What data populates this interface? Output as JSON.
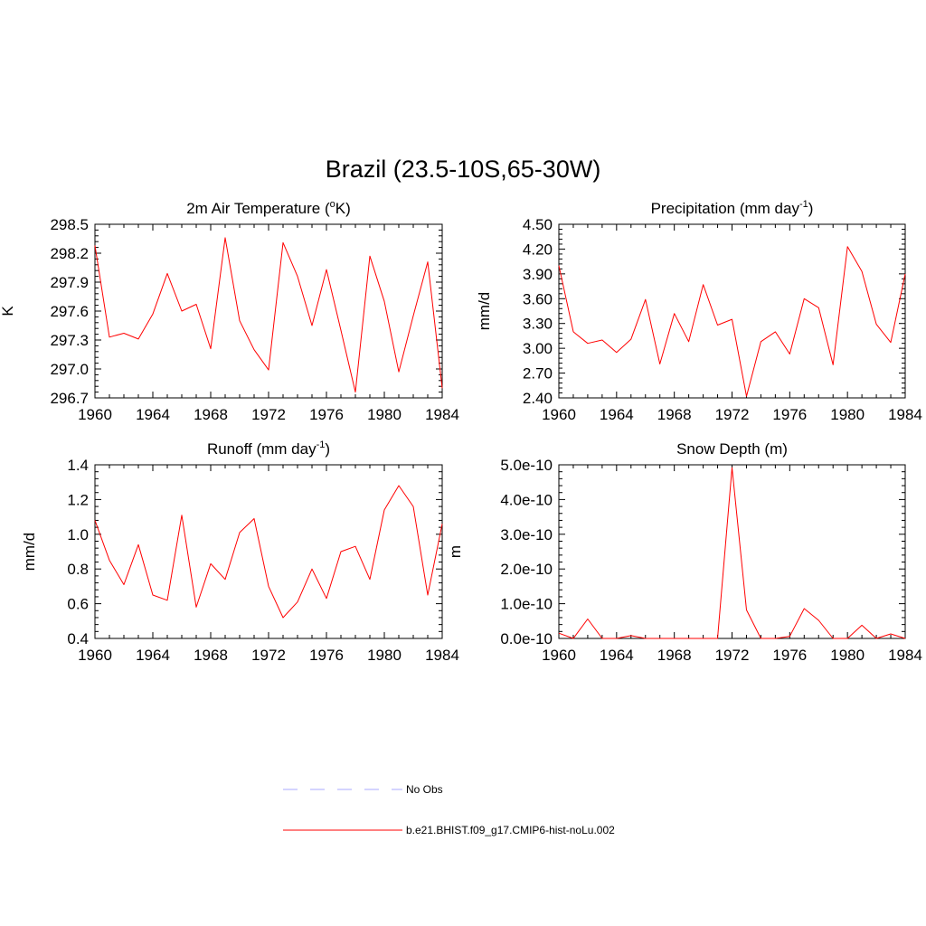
{
  "title": "Brazil (23.5-10S,65-30W)",
  "chart_data": [
    {
      "type": "line",
      "title": "2m Air Temperature (",
      "title_sup": "o",
      "title_suffix": "K)",
      "ylabel": "K",
      "xlim": [
        1960,
        1984
      ],
      "ylim": [
        296.7,
        298.5
      ],
      "xticks": [
        1960,
        1964,
        1968,
        1972,
        1976,
        1980,
        1984
      ],
      "yticks": [
        "296.7",
        "297.0",
        "297.3",
        "297.6",
        "297.9",
        "298.2",
        "298.5"
      ],
      "x": [
        1960,
        1961,
        1962,
        1963,
        1964,
        1965,
        1966,
        1967,
        1968,
        1969,
        1970,
        1971,
        1972,
        1973,
        1974,
        1975,
        1976,
        1977,
        1978,
        1979,
        1980,
        1981,
        1982,
        1983,
        1984
      ],
      "series": [
        {
          "values": [
            298.28,
            297.33,
            297.37,
            297.31,
            297.57,
            297.99,
            297.6,
            297.67,
            297.21,
            298.36,
            297.5,
            297.2,
            296.99,
            298.31,
            297.96,
            297.45,
            298.03,
            297.4,
            296.76,
            298.17,
            297.7,
            296.97,
            297.55,
            298.11,
            296.8
          ]
        }
      ]
    },
    {
      "type": "line",
      "title": "Precipitation (mm day",
      "title_sup": "-1",
      "title_suffix": ")",
      "ylabel": "mm/d",
      "xlim": [
        1960,
        1984
      ],
      "ylim": [
        2.4,
        4.5
      ],
      "xticks": [
        1960,
        1964,
        1968,
        1972,
        1976,
        1980,
        1984
      ],
      "yticks": [
        "2.40",
        "2.70",
        "3.00",
        "3.30",
        "3.60",
        "3.90",
        "4.20",
        "4.50"
      ],
      "x": [
        1960,
        1961,
        1962,
        1963,
        1964,
        1965,
        1966,
        1967,
        1968,
        1969,
        1970,
        1971,
        1972,
        1973,
        1974,
        1975,
        1976,
        1977,
        1978,
        1979,
        1980,
        1981,
        1982,
        1983,
        1984
      ],
      "series": [
        {
          "values": [
            4.0,
            3.2,
            3.06,
            3.1,
            2.95,
            3.11,
            3.59,
            2.81,
            3.42,
            3.08,
            3.77,
            3.28,
            3.35,
            2.42,
            3.08,
            3.2,
            2.93,
            3.6,
            3.49,
            2.8,
            4.23,
            3.93,
            3.29,
            3.07,
            3.9
          ]
        }
      ]
    },
    {
      "type": "line",
      "title": "Runoff (mm day",
      "title_sup": "-1",
      "title_suffix": ")",
      "ylabel": "mm/d",
      "xlim": [
        1960,
        1984
      ],
      "ylim": [
        0.4,
        1.4
      ],
      "xticks": [
        1960,
        1964,
        1968,
        1972,
        1976,
        1980,
        1984
      ],
      "yticks": [
        "0.4",
        "0.6",
        "0.8",
        "1.0",
        "1.2",
        "1.4"
      ],
      "x": [
        1960,
        1961,
        1962,
        1963,
        1964,
        1965,
        1966,
        1967,
        1968,
        1969,
        1970,
        1971,
        1972,
        1973,
        1974,
        1975,
        1976,
        1977,
        1978,
        1979,
        1980,
        1981,
        1982,
        1983,
        1984
      ],
      "series": [
        {
          "values": [
            1.08,
            0.85,
            0.71,
            0.94,
            0.65,
            0.62,
            1.11,
            0.58,
            0.83,
            0.74,
            1.01,
            1.09,
            0.7,
            0.52,
            0.61,
            0.8,
            0.63,
            0.9,
            0.93,
            0.74,
            1.14,
            1.28,
            1.16,
            0.65,
            1.06
          ]
        }
      ]
    },
    {
      "type": "line",
      "title": "Snow Depth (m)",
      "title_sup": "",
      "title_suffix": "",
      "ylabel": "m",
      "xlim": [
        1960,
        1984
      ],
      "ylim": [
        0,
        5e-10
      ],
      "xticks": [
        1960,
        1964,
        1968,
        1972,
        1976,
        1980,
        1984
      ],
      "yticks": [
        "0.0e-10",
        "1.0e-10",
        "2.0e-10",
        "3.0e-10",
        "4.0e-10",
        "5.0e-10"
      ],
      "x": [
        1960,
        1961,
        1962,
        1963,
        1964,
        1965,
        1966,
        1967,
        1968,
        1969,
        1970,
        1971,
        1972,
        1973,
        1974,
        1975,
        1976,
        1977,
        1978,
        1979,
        1980,
        1981,
        1982,
        1983,
        1984
      ],
      "series": [
        {
          "values": [
            1.5e-11,
            0,
            5.6e-11,
            0,
            0,
            8e-12,
            0,
            0,
            0,
            0,
            0,
            0,
            4.92e-10,
            8.2e-11,
            0,
            0,
            6e-12,
            8.6e-11,
            5.2e-11,
            0,
            0,
            3.8e-11,
            0,
            1.3e-11,
            0
          ]
        }
      ]
    }
  ],
  "legend": {
    "items": [
      {
        "label": "No Obs",
        "color": "#a9a9ff",
        "style": "dashed"
      },
      {
        "label": "b.e21.BHIST.f09_g17.CMIP6-hist-noLu.002",
        "color": "#ff0000",
        "style": "solid"
      }
    ]
  },
  "colors": {
    "line": "#ff0000",
    "axis": "#000000",
    "obs": "#a9a9ff"
  }
}
